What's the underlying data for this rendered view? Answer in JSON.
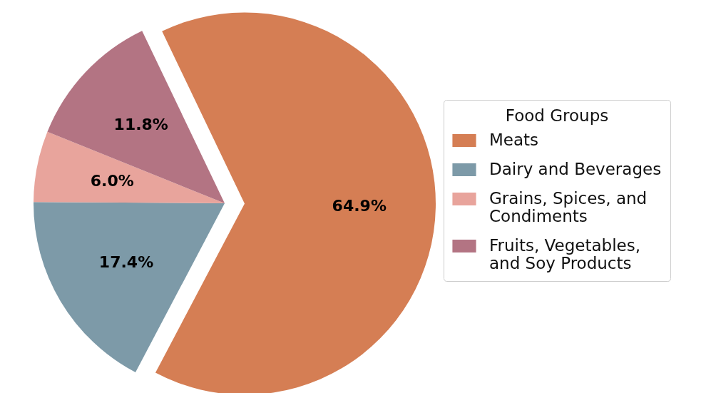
{
  "chart_data": {
    "type": "pie",
    "categories": [
      "Meats",
      "Dairy and Beverages",
      "Grains, Spices, and Condiments",
      "Fruits, Vegetables, and Soy Products"
    ],
    "values": [
      64.9,
      17.4,
      6.0,
      11.8
    ],
    "colors": [
      "#d57e54",
      "#7d9aa8",
      "#e8a49c",
      "#b37483"
    ],
    "value_labels": [
      "64.9%",
      "17.4%",
      "6.0%",
      "11.8%"
    ],
    "legend_title": "Food Groups",
    "legend": "right"
  }
}
